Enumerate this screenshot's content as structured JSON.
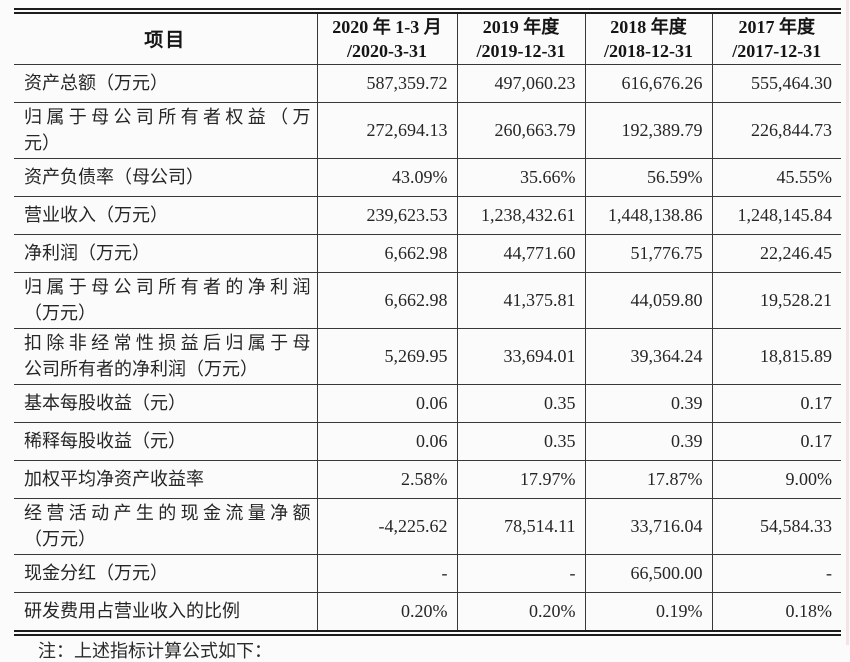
{
  "colors": {
    "text": "#262626",
    "table_line": "#383838",
    "background": "#fbfbfb",
    "scan_edge_artifact": "#f1ccd1"
  },
  "table": {
    "columns": {
      "item_header": "项目",
      "period_headers": [
        [
          "2020 年 1-3 月",
          "/2020-3-31"
        ],
        [
          "2019 年度",
          "/2019-12-31"
        ],
        [
          "2018 年度",
          "/2018-12-31"
        ],
        [
          "2017 年度",
          "/2017-12-31"
        ]
      ]
    },
    "rows": [
      {
        "label_lines": [
          "资产总额（万元）"
        ],
        "values": [
          "587,359.72",
          "497,060.23",
          "616,676.26",
          "555,464.30"
        ]
      },
      {
        "label_lines": [
          "归属于母公司所有者权益（万",
          "元）"
        ],
        "values": [
          "272,694.13",
          "260,663.79",
          "192,389.79",
          "226,844.73"
        ]
      },
      {
        "label_lines": [
          "资产负债率（母公司）"
        ],
        "values": [
          "43.09%",
          "35.66%",
          "56.59%",
          "45.55%"
        ]
      },
      {
        "label_lines": [
          "营业收入（万元）"
        ],
        "values": [
          "239,623.53",
          "1,238,432.61",
          "1,448,138.86",
          "1,248,145.84"
        ]
      },
      {
        "label_lines": [
          "净利润（万元）"
        ],
        "values": [
          "6,662.98",
          "44,771.60",
          "51,776.75",
          "22,246.45"
        ]
      },
      {
        "label_lines": [
          "归属于母公司所有者的净利润",
          "（万元）"
        ],
        "values": [
          "6,662.98",
          "41,375.81",
          "44,059.80",
          "19,528.21"
        ]
      },
      {
        "label_lines": [
          "扣除非经常性损益后归属于母",
          "公司所有者的净利润（万元）"
        ],
        "values": [
          "5,269.95",
          "33,694.01",
          "39,364.24",
          "18,815.89"
        ]
      },
      {
        "label_lines": [
          "基本每股收益（元）"
        ],
        "values": [
          "0.06",
          "0.35",
          "0.39",
          "0.17"
        ]
      },
      {
        "label_lines": [
          "稀释每股收益（元）"
        ],
        "values": [
          "0.06",
          "0.35",
          "0.39",
          "0.17"
        ]
      },
      {
        "label_lines": [
          "加权平均净资产收益率"
        ],
        "values": [
          "2.58%",
          "17.97%",
          "17.87%",
          "9.00%"
        ]
      },
      {
        "label_lines": [
          "经营活动产生的现金流量净额",
          "（万元）"
        ],
        "values": [
          "-4,225.62",
          "78,514.11",
          "33,716.04",
          "54,584.33"
        ]
      },
      {
        "label_lines": [
          "现金分红（万元）"
        ],
        "values": [
          "-",
          "-",
          "66,500.00",
          "-"
        ]
      },
      {
        "label_lines": [
          "研发费用占营业收入的比例"
        ],
        "values": [
          "0.20%",
          "0.20%",
          "0.19%",
          "0.18%"
        ]
      }
    ]
  },
  "footnote": "注：上述指标计算公式如下："
}
